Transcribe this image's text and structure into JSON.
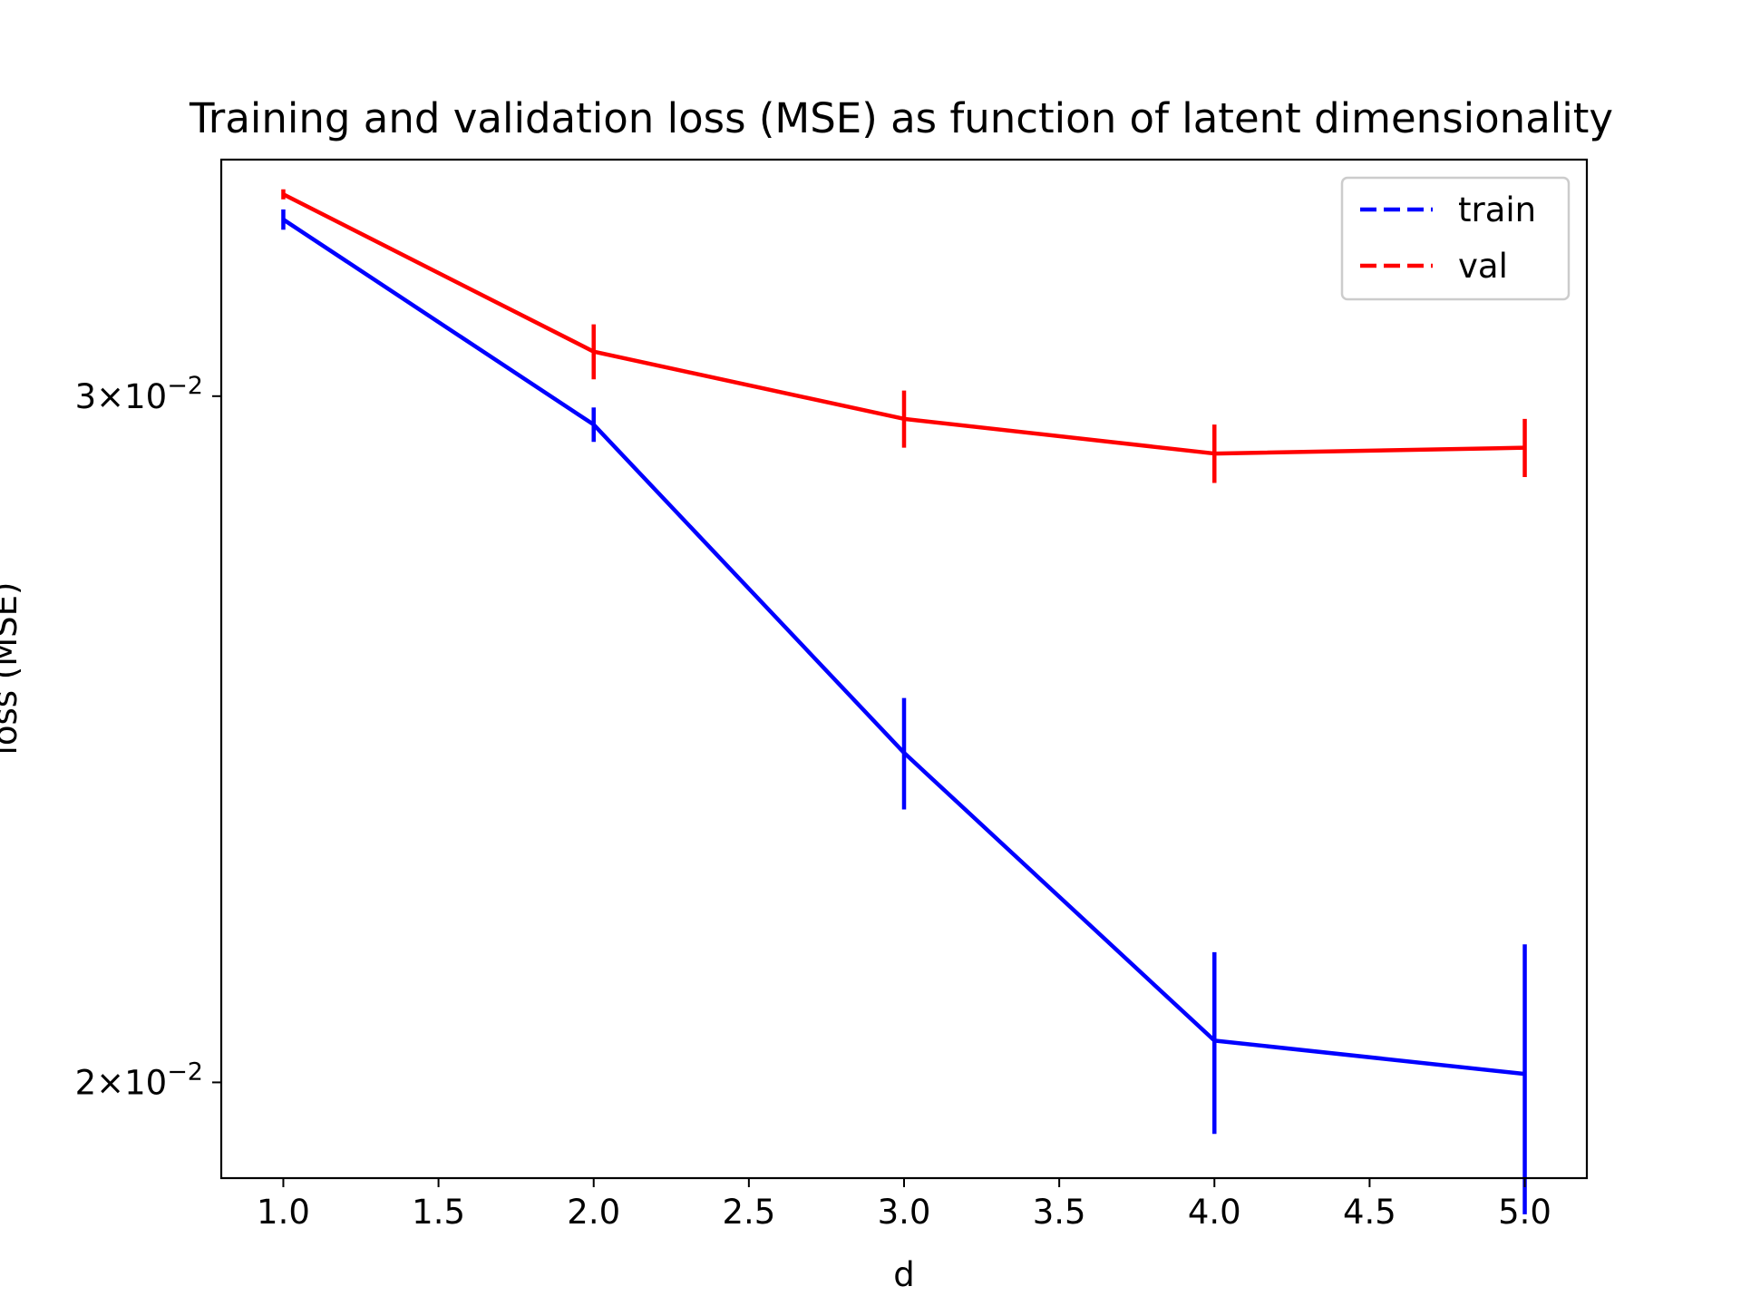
{
  "chart_data": {
    "type": "line",
    "title": "Training and validation loss (MSE) as function of latent dimensionality",
    "xlabel": "d",
    "ylabel": "loss (MSE)",
    "xlim": [
      0.8,
      5.2
    ],
    "ylim": [
      0.0189,
      0.0345
    ],
    "yscale": "log",
    "x_ticks": [
      1.0,
      1.5,
      2.0,
      2.5,
      3.0,
      3.5,
      4.0,
      4.5,
      5.0
    ],
    "x_tick_labels": [
      "1.0",
      "1.5",
      "2.0",
      "2.5",
      "3.0",
      "3.5",
      "4.0",
      "4.5",
      "5.0"
    ],
    "y_ticks": [
      0.02,
      0.03
    ],
    "y_tick_labels": [
      {
        "base": "2",
        "exp": "−2"
      },
      {
        "base": "3",
        "exp": "−2"
      }
    ],
    "y_tick_times": "×",
    "y_tick_ten": "10",
    "legend_position": "upper right",
    "grid": false,
    "series": [
      {
        "name": "train",
        "color": "#0000ff",
        "x": [
          1,
          2,
          3,
          4,
          5
        ],
        "y": [
          0.0333,
          0.0295,
          0.0243,
          0.0205,
          0.0201
        ],
        "yerr": [
          0.0002,
          0.0003,
          0.0008,
          0.0011,
          0.0016
        ]
      },
      {
        "name": "val",
        "color": "#ff0000",
        "x": [
          1,
          2,
          3,
          4,
          5
        ],
        "y": [
          0.0338,
          0.0308,
          0.0296,
          0.029,
          0.0291
        ],
        "yerr": [
          0.0001,
          0.0005,
          0.0005,
          0.0005,
          0.0005
        ]
      }
    ]
  }
}
